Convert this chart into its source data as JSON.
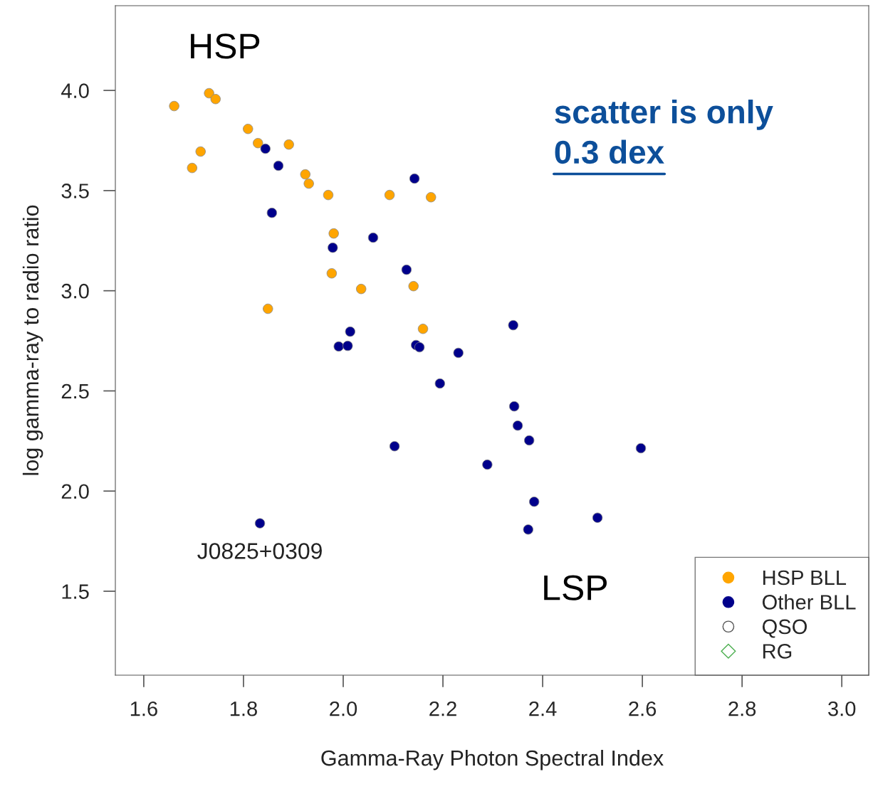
{
  "chart_data": {
    "type": "scatter",
    "xlabel": "Gamma-Ray Photon Spectral Index",
    "ylabel": "log gamma-ray to radio ratio",
    "xlim": [
      1.543,
      3.054
    ],
    "ylim": [
      1.081,
      4.423
    ],
    "xticks": [
      {
        "value": 1.6,
        "label": "1.6"
      },
      {
        "value": 1.8,
        "label": "1.8"
      },
      {
        "value": 2.0,
        "label": "2.0"
      },
      {
        "value": 2.2,
        "label": "2.2"
      },
      {
        "value": 2.4,
        "label": "2.4"
      },
      {
        "value": 2.6,
        "label": "2.6"
      },
      {
        "value": 2.8,
        "label": "2.8"
      },
      {
        "value": 3.0,
        "label": "3.0"
      }
    ],
    "yticks": [
      {
        "value": 1.5,
        "label": "1.5"
      },
      {
        "value": 2.0,
        "label": "2.0"
      },
      {
        "value": 2.5,
        "label": "2.5"
      },
      {
        "value": 3.0,
        "label": "3.0"
      },
      {
        "value": 3.5,
        "label": "3.5"
      },
      {
        "value": 4.0,
        "label": "4.0"
      }
    ],
    "grid": false,
    "legend": "bottom right",
    "series": [
      {
        "name": "HSP BLL",
        "color": "#ffa500",
        "marker": "circle",
        "x": [
          1.661,
          1.731,
          1.744,
          1.809,
          1.829,
          1.714,
          1.697,
          1.891,
          1.924,
          1.931,
          1.97,
          2.093,
          2.176,
          1.981,
          1.977,
          2.036,
          2.141,
          1.849,
          2.16
        ],
        "values": [
          3.922,
          3.986,
          3.957,
          3.808,
          3.737,
          3.695,
          3.613,
          3.73,
          3.581,
          3.535,
          3.478,
          3.478,
          3.467,
          3.286,
          3.087,
          3.009,
          3.023,
          2.91,
          2.81
        ]
      },
      {
        "name": "Other BLL",
        "color": "#00008b",
        "marker": "circle",
        "x": [
          1.844,
          1.87,
          1.857,
          2.143,
          2.06,
          1.979,
          2.127,
          2.014,
          1.991,
          2.009,
          2.146,
          2.153,
          2.231,
          2.341,
          2.194,
          2.343,
          2.35,
          2.373,
          2.103,
          2.289,
          2.597,
          2.383,
          2.371,
          2.51,
          1.833
        ],
        "values": [
          3.709,
          3.624,
          3.389,
          3.56,
          3.265,
          3.215,
          3.105,
          2.796,
          2.722,
          2.725,
          2.729,
          2.718,
          2.69,
          2.828,
          2.537,
          2.423,
          2.327,
          2.253,
          2.224,
          2.132,
          2.214,
          1.947,
          1.808,
          1.867,
          1.839
        ]
      },
      {
        "name": "QSO",
        "color": "#555555",
        "marker": "circle"
      },
      {
        "name": "RG",
        "color": "#4caf50",
        "marker": "diamond"
      }
    ],
    "annotations": [
      "HSP",
      "LSP",
      "scatter is only",
      "0.3 dex",
      {
        "text": "J0825+0309",
        "x": 1.833,
        "y": 1.839
      }
    ]
  }
}
